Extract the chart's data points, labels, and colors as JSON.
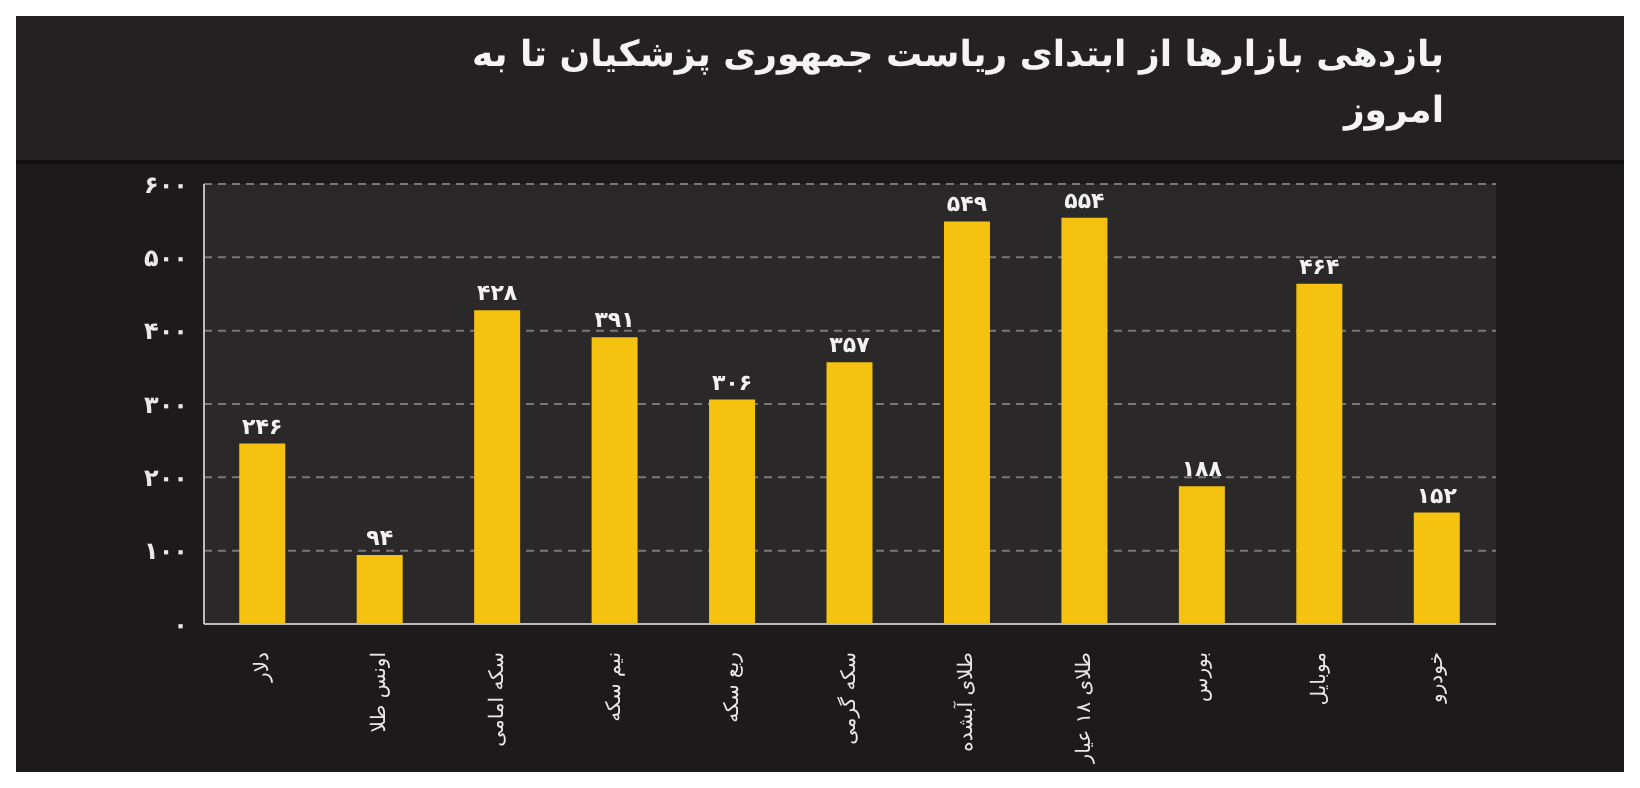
{
  "chart_data": {
    "type": "bar",
    "title": "بازدهی بازارها از ابتدای ریاست جمهوری پزشکیان تا به امروز",
    "categories": [
      "دلار",
      "اونس طلا",
      "سکه امامی",
      "نیم سکه",
      "ربع سکه",
      "سکه گرمی",
      "طلای آبشده",
      "طلای ۱۸ عیار",
      "بورس",
      "موبایل",
      "خودرو"
    ],
    "values": [
      246,
      94,
      428,
      391,
      306,
      357,
      549,
      554,
      188,
      464,
      152
    ],
    "value_labels": [
      "۲۴۶",
      "۹۴",
      "۴۲۸",
      "۳۹۱",
      "۳۰۶",
      "۳۵۷",
      "۵۴۹",
      "۵۵۴",
      "۱۸۸",
      "۴۶۴",
      "۱۵۲"
    ],
    "color": "#f5c20f",
    "ylim": [
      0,
      600
    ],
    "yticks": [
      {
        "value": 0,
        "label": "۰"
      },
      {
        "value": 100,
        "label": "۱۰۰"
      },
      {
        "value": 200,
        "label": "۲۰۰"
      },
      {
        "value": 300,
        "label": "۳۰۰"
      },
      {
        "value": 400,
        "label": "۴۰۰"
      },
      {
        "value": 500,
        "label": "۵۰۰"
      },
      {
        "value": 600,
        "label": "۶۰۰"
      }
    ],
    "grid": "y",
    "legend": false
  }
}
